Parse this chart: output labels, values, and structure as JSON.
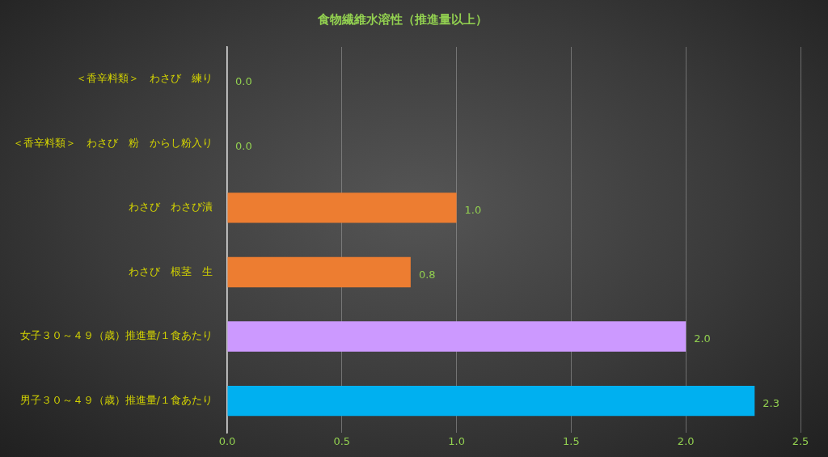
{
  "chart_data": {
    "type": "bar",
    "orientation": "horizontal",
    "title": "食物繊維水溶性（推進量以上）",
    "categories": [
      "＜香辛料類＞　わさび　練り",
      "＜香辛料類＞　わさび　粉　からし粉入り",
      "わさび　わさび漬",
      "わさび　根茎　生",
      "女子３０～４９（歳）推進量/１食あたり",
      "男子３０～４９（歳）推進量/１食あたり"
    ],
    "values": [
      0,
      0,
      1.0,
      0.8,
      2.0,
      2.3
    ],
    "colors": [
      "#ed7d31",
      "#ed7d31",
      "#ed7d31",
      "#ed7d31",
      "#cc99ff",
      "#00b0f0"
    ],
    "value_labels": [
      "0.0",
      "0.0",
      "1.0",
      "0.8",
      "2.0",
      "2.3"
    ],
    "xlim": [
      0,
      2.5
    ],
    "xticks": [
      {
        "value": 0,
        "label": "0.0"
      },
      {
        "value": 0.5,
        "label": "0.5"
      },
      {
        "value": 1,
        "label": "1.0"
      },
      {
        "value": 1.5,
        "label": "1.5"
      },
      {
        "value": 2,
        "label": "2.0"
      },
      {
        "value": 2.5,
        "label": "2.5"
      }
    ],
    "grid": "x",
    "legend": false
  }
}
